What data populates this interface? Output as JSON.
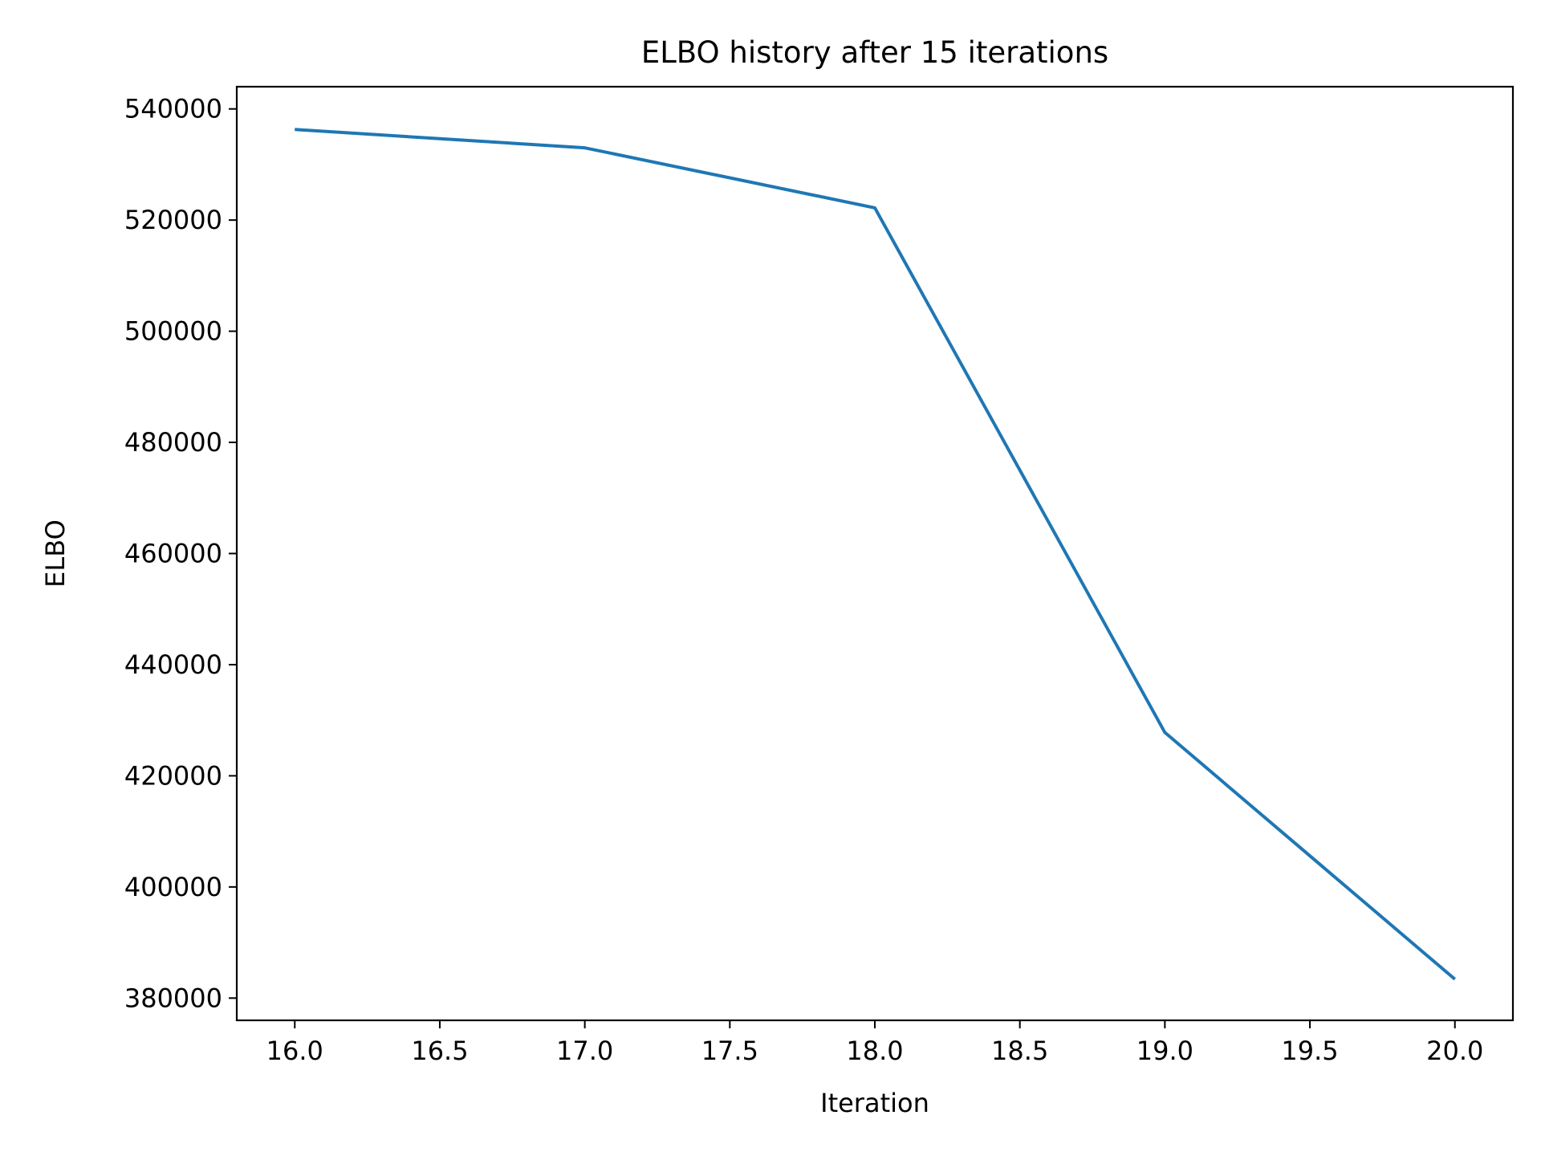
{
  "chart_data": {
    "type": "line",
    "title": "ELBO history after 15 iterations",
    "xlabel": "Iteration",
    "ylabel": "ELBO",
    "xlim": [
      15.8,
      20.2
    ],
    "ylim": [
      376000,
      544000
    ],
    "xticks": [
      16.0,
      16.5,
      17.0,
      17.5,
      18.0,
      18.5,
      19.0,
      19.5,
      20.0
    ],
    "xtick_labels": [
      "16.0",
      "16.5",
      "17.0",
      "17.5",
      "18.0",
      "18.5",
      "19.0",
      "19.5",
      "20.0"
    ],
    "yticks": [
      380000,
      400000,
      420000,
      440000,
      460000,
      480000,
      500000,
      520000,
      540000
    ],
    "ytick_labels": [
      "380000",
      "400000",
      "420000",
      "440000",
      "460000",
      "480000",
      "500000",
      "520000",
      "540000"
    ],
    "grid": false,
    "series": [
      {
        "color": "#1f77b4",
        "x": [
          16,
          17,
          18,
          19,
          20
        ],
        "y": [
          536300,
          533000,
          522200,
          427800,
          383400
        ]
      }
    ]
  }
}
